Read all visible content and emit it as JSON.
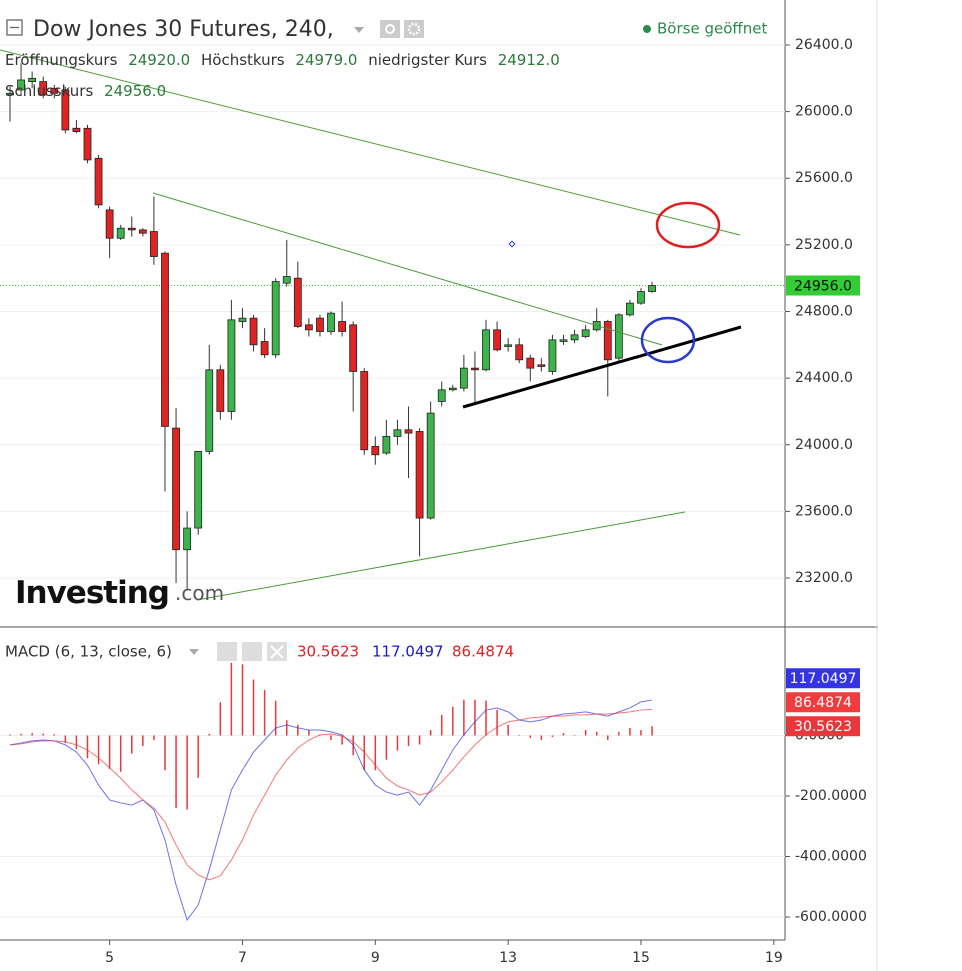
{
  "header": {
    "title": "Dow Jones 30 Futures, 240,",
    "status": "Börse geöffnet",
    "ohlc": [
      {
        "name": "Eröffnungskurs",
        "value": "24920.0"
      },
      {
        "name": "Höchstkurs",
        "value": "24979.0"
      },
      {
        "name": "niedrigster Kurs",
        "value": "24912.0"
      },
      {
        "name": "Schlusskurs",
        "value": "24956.0"
      }
    ],
    "logo": "Investing",
    "logo_suffix": ".com"
  },
  "chart_data": [
    {
      "type": "candlestick",
      "up_color": "#3cb44b",
      "down_color": "#e02424",
      "open": [
        26100,
        26130,
        26180,
        26180,
        26140,
        26130,
        25900,
        25900,
        25720,
        25410,
        25240,
        25300,
        25290,
        25280,
        25150,
        24100,
        23370,
        23500,
        23960,
        24450,
        24200,
        24740,
        24760,
        24620,
        24540,
        24970,
        25000,
        24720,
        24760,
        24680,
        24740,
        24720,
        24440,
        23990,
        23950,
        24050,
        24090,
        24080,
        23560,
        24260,
        24330,
        24340,
        24460,
        24450,
        24690,
        24590,
        24600,
        24520,
        24480,
        24440,
        24620,
        24630,
        24650,
        24690,
        24740,
        24520,
        24780,
        24850,
        24920,
        null,
        null,
        null,
        null,
        null,
        null,
        null,
        null,
        null,
        null,
        null,
        null
      ],
      "high": [
        26150,
        26290,
        26240,
        26210,
        26160,
        26150,
        25950,
        25920,
        25740,
        25430,
        25320,
        25370,
        25300,
        25490,
        25160,
        24220,
        23600,
        23960,
        24600,
        24480,
        24870,
        24820,
        24780,
        24700,
        25000,
        25230,
        25100,
        24760,
        24780,
        24800,
        24860,
        24740,
        24460,
        24050,
        24150,
        24150,
        24230,
        24100,
        24260,
        24380,
        24360,
        24540,
        24560,
        24750,
        24740,
        24640,
        24640,
        24540,
        24520,
        24660,
        24660,
        24690,
        24720,
        24820,
        24750,
        24790,
        24870,
        24940,
        24979,
        null,
        null,
        null,
        null,
        null,
        null,
        null,
        null,
        null,
        null,
        null,
        null
      ],
      "low": [
        25940,
        26100,
        26140,
        26080,
        26080,
        25870,
        25870,
        25690,
        25420,
        25120,
        25230,
        25250,
        25250,
        25080,
        23720,
        23170,
        23130,
        23460,
        23940,
        24150,
        24150,
        24700,
        24560,
        24520,
        24520,
        24950,
        24700,
        24650,
        24650,
        24660,
        24650,
        24200,
        23940,
        23880,
        23940,
        24000,
        23800,
        23330,
        23550,
        24230,
        24320,
        24320,
        24240,
        24440,
        24560,
        24560,
        24490,
        24380,
        24440,
        24420,
        24600,
        24610,
        24640,
        24680,
        24290,
        24500,
        24770,
        24840,
        24912,
        null,
        null,
        null,
        null,
        null,
        null,
        null,
        null,
        null,
        null,
        null,
        null
      ],
      "close": [
        26110,
        26190,
        26200,
        26100,
        26110,
        25890,
        25880,
        25710,
        25440,
        25240,
        25300,
        25290,
        25270,
        25130,
        24110,
        23370,
        23500,
        23960,
        24450,
        24200,
        24750,
        24760,
        24600,
        24540,
        24980,
        25010,
        24710,
        24690,
        24680,
        24790,
        24680,
        24440,
        23970,
        23940,
        24050,
        24090,
        24070,
        23560,
        24190,
        24330,
        24340,
        24460,
        24450,
        24690,
        24570,
        24600,
        24510,
        24460,
        24470,
        24630,
        24630,
        24660,
        24690,
        24740,
        24510,
        24780,
        24850,
        24920,
        24956,
        null,
        null,
        null,
        null,
        null,
        null,
        null,
        null,
        null,
        null,
        null,
        null
      ],
      "ylim": [
        22906,
        26670
      ],
      "yticks": [
        {
          "value": 23200,
          "label": "23200.0"
        },
        {
          "value": 23600,
          "label": "23600.0"
        },
        {
          "value": 24000,
          "label": "24000.0"
        },
        {
          "value": 24400,
          "label": "24400.0"
        },
        {
          "value": 24800,
          "label": "24800.0"
        },
        {
          "value": 25200,
          "label": "25200.0"
        },
        {
          "value": 25600,
          "label": "25600.0"
        },
        {
          "value": 26000,
          "label": "26000.0"
        },
        {
          "value": 26400,
          "label": "26400.0"
        }
      ],
      "last_price": {
        "value": 24956,
        "label": "24956.0",
        "color": "#33cc33"
      },
      "grid": true
    },
    {
      "type": "macd",
      "title": "MACD (6, 13, close, 6)",
      "categories": [
        null,
        null,
        null,
        null,
        null,
        null,
        null,
        null,
        null,
        "5",
        null,
        null,
        null,
        null,
        null,
        null,
        null,
        null,
        null,
        null,
        null,
        "7",
        null,
        null,
        null,
        null,
        null,
        null,
        null,
        null,
        null,
        null,
        null,
        "9",
        null,
        null,
        null,
        null,
        null,
        null,
        null,
        null,
        null,
        null,
        null,
        "13",
        null,
        null,
        null,
        null,
        null,
        null,
        null,
        null,
        null,
        null,
        null,
        "15",
        null,
        null,
        null,
        null,
        null,
        null,
        null,
        null,
        null,
        null,
        null,
        "19",
        null
      ],
      "histogram": {
        "color": "#e8383c",
        "values": [
          3,
          5,
          8,
          6,
          4,
          -25,
          -45,
          -75,
          -95,
          -110,
          -120,
          -60,
          -35,
          -15,
          -115,
          -240,
          -245,
          -140,
          5,
          110,
          240,
          235,
          185,
          150,
          115,
          50,
          35,
          18,
          2,
          -15,
          -30,
          -65,
          -115,
          -115,
          -80,
          -50,
          -35,
          -30,
          18,
          68,
          95,
          118,
          118,
          115,
          85,
          35,
          2,
          -8,
          -15,
          -5,
          8,
          2,
          18,
          12,
          -15,
          12,
          25,
          18,
          30.5623,
          null,
          null,
          null,
          null,
          null,
          null,
          null,
          null,
          null,
          null,
          null,
          null
        ]
      },
      "series": [
        {
          "color": "#3434e6",
          "values": [
            -31,
            -25,
            -18,
            -15,
            -18,
            -31,
            -55,
            -98,
            -164,
            -213,
            -223,
            -230,
            -213,
            -246,
            -345,
            -494,
            -610,
            -560,
            -444,
            -312,
            -180,
            -114,
            -55,
            -15,
            25,
            35,
            25,
            18,
            18,
            12,
            2,
            -31,
            -114,
            -164,
            -187,
            -197,
            -187,
            -230,
            -180,
            -114,
            -48,
            2,
            45,
            84,
            91,
            78,
            51,
            45,
            51,
            64,
            71,
            74,
            78,
            71,
            64,
            78,
            91,
            111,
            117.0497,
            null,
            null,
            null,
            null,
            null,
            null,
            null,
            null,
            null,
            null,
            null,
            null
          ]
        },
        {
          "color": "#f03c3c",
          "values": [
            -31,
            -28,
            -21,
            -18,
            -18,
            -21,
            -31,
            -48,
            -74,
            -107,
            -141,
            -180,
            -213,
            -240,
            -286,
            -362,
            -428,
            -461,
            -477,
            -464,
            -411,
            -345,
            -263,
            -197,
            -131,
            -81,
            -41,
            -15,
            2,
            5,
            -2,
            -21,
            -55,
            -98,
            -141,
            -167,
            -180,
            -197,
            -187,
            -154,
            -114,
            -71,
            -31,
            2,
            28,
            45,
            51,
            58,
            61,
            64,
            64,
            68,
            68,
            71,
            71,
            74,
            78,
            84,
            86.4874,
            null,
            null,
            null,
            null,
            null,
            null,
            null,
            null,
            null,
            null,
            null,
            null
          ]
        }
      ],
      "ylim": [
        -676,
        342
      ],
      "yticks": [
        {
          "value": -600,
          "label": "-600.0000"
        },
        {
          "value": -400,
          "label": "-400.0000"
        },
        {
          "value": -200,
          "label": "-200.0000"
        },
        {
          "value": 0,
          "label": "0.0000"
        }
      ],
      "grid": true
    }
  ]
}
